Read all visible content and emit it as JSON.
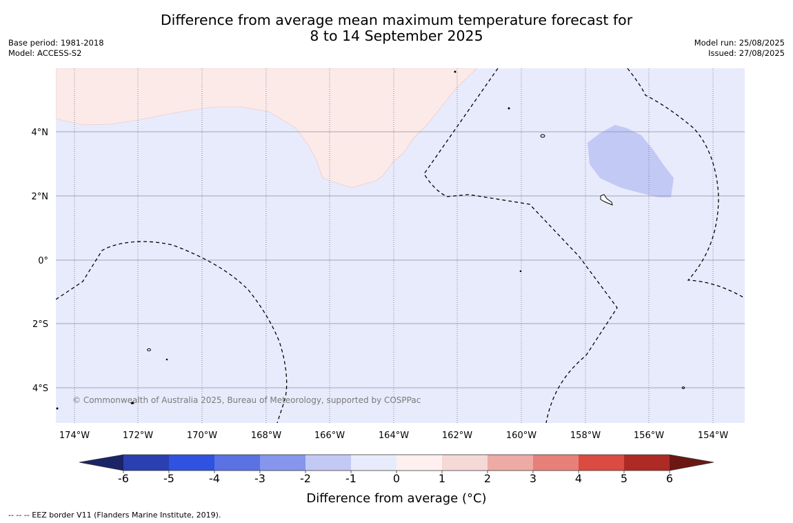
{
  "title": {
    "line1": "Difference from average mean maximum temperature forecast for",
    "line2": "8 to 14 September 2025"
  },
  "meta_left": {
    "base_period": "Base period: 1981-2018",
    "model": "Model: ACCESS-S2"
  },
  "meta_right": {
    "model_run": "Model run: 25/08/2025",
    "issued": "Issued: 27/08/2025"
  },
  "map": {
    "latitude_labels": [
      "4°N",
      "2°N",
      "0°",
      "2°S",
      "4°S"
    ],
    "longitude_labels": [
      "174°W",
      "172°W",
      "170°W",
      "168°W",
      "166°W",
      "164°W",
      "162°W",
      "160°W",
      "158°W",
      "156°W",
      "154°W"
    ],
    "copyright": "© Commonwealth of Australia 2025, Bureau of Meteorology, supported by COSPPac",
    "colors": {
      "ocean_base": "#e8ebfb",
      "warm_region": "#fbeae8",
      "cool_region": "#c3c9f5",
      "gridline": "#8c8c9c"
    }
  },
  "colorbar": {
    "title": "Difference from average (°C)",
    "ticks": [
      "-6",
      "-5",
      "-4",
      "-3",
      "-2",
      "-1",
      "0",
      "1",
      "2",
      "3",
      "4",
      "5",
      "6"
    ],
    "colors": {
      "below_min": "#1b2466",
      "bins": [
        "#2a3fb0",
        "#2f52e0",
        "#5a72e4",
        "#8596ec",
        "#c3c9f5",
        "#e8ebfb",
        "#fdf0ee",
        "#f4d9d6",
        "#eeaaa5",
        "#e8807a",
        "#db4b41",
        "#ae2a24"
      ],
      "above_max": "#6b1813"
    }
  },
  "footer": "--  --  -- EEZ border V11 (Flanders Marine Institute, 2019)."
}
